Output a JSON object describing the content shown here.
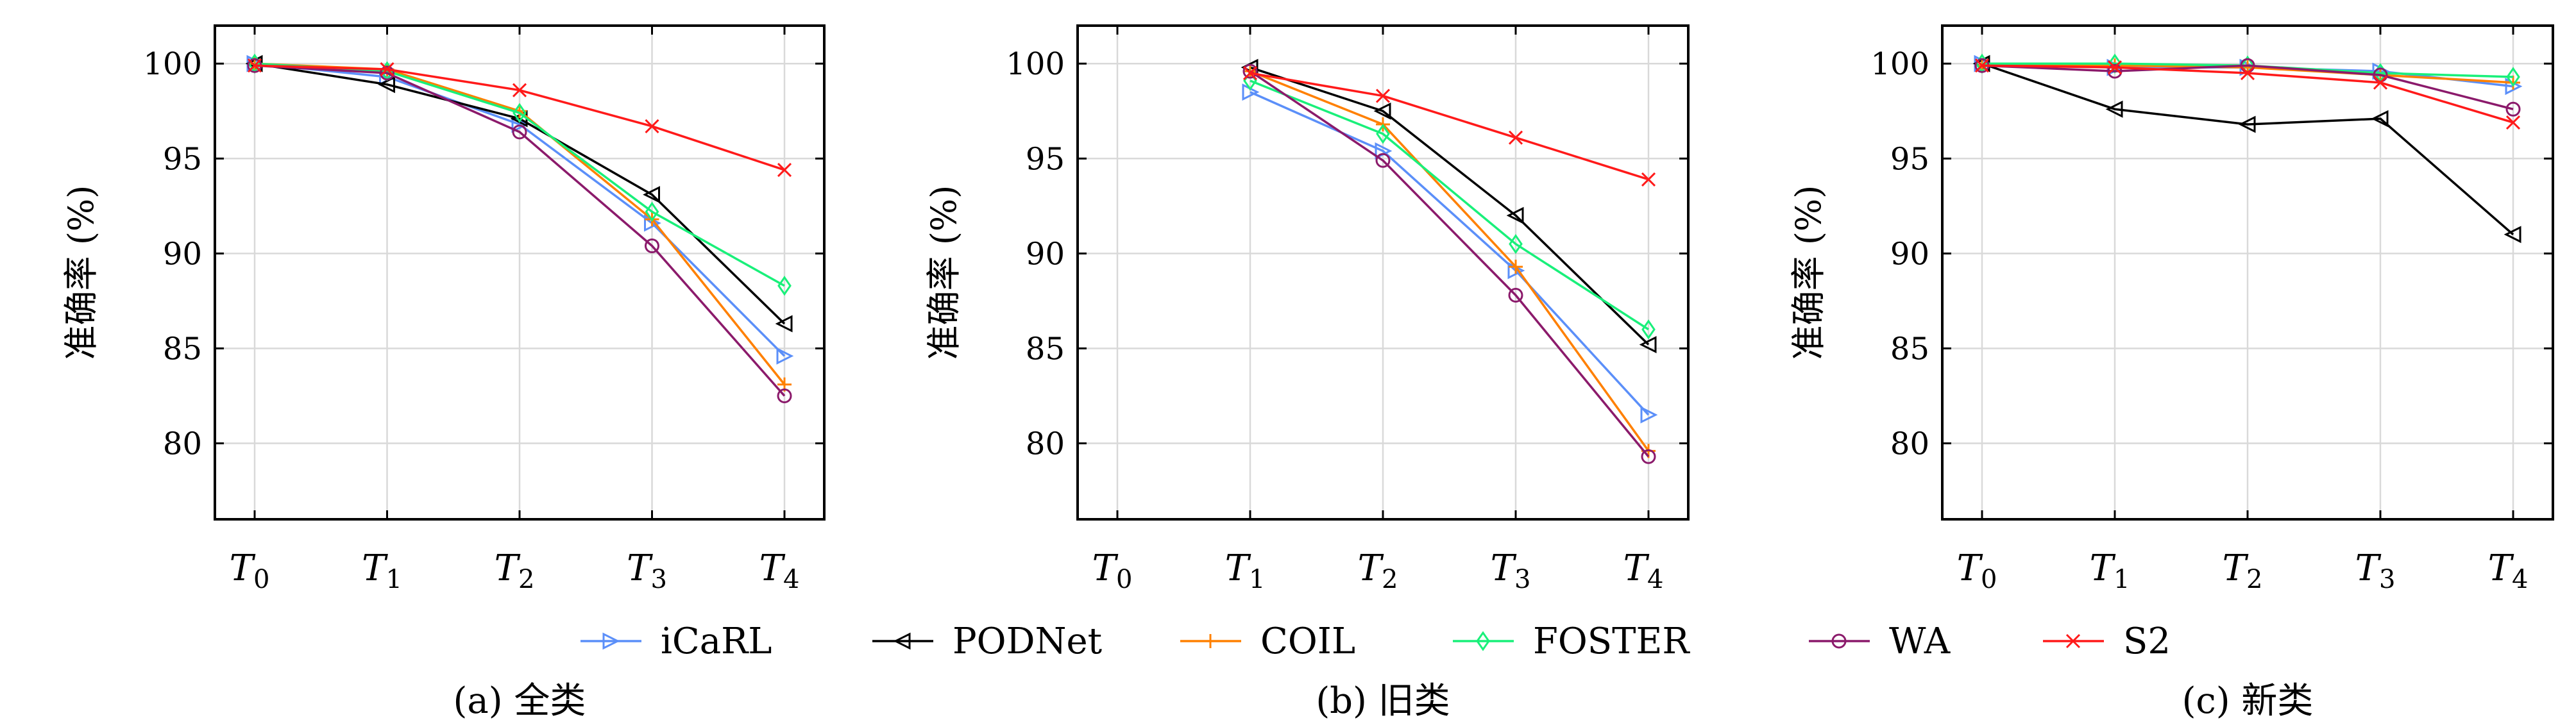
{
  "chart_data": [
    {
      "type": "line",
      "caption": "(a) 全类",
      "ylabel": "准确率 (%)",
      "x": [
        "T0",
        "T1",
        "T2",
        "T3",
        "T4"
      ],
      "ylim": [
        76,
        102
      ],
      "yticks": [
        80,
        85,
        90,
        95,
        100
      ],
      "grid": true,
      "series": [
        {
          "name": "iCaRL",
          "values": [
            100.0,
            99.3,
            96.8,
            91.6,
            84.6
          ]
        },
        {
          "name": "PODNet",
          "values": [
            100.0,
            98.9,
            97.1,
            93.1,
            86.3
          ]
        },
        {
          "name": "COIL",
          "values": [
            100.0,
            99.7,
            97.5,
            91.8,
            83.1
          ]
        },
        {
          "name": "FOSTER",
          "values": [
            100.0,
            99.6,
            97.4,
            92.2,
            88.3
          ]
        },
        {
          "name": "WA",
          "values": [
            99.9,
            99.5,
            96.4,
            90.4,
            82.5
          ]
        },
        {
          "name": "S2",
          "values": [
            99.9,
            99.7,
            98.6,
            96.7,
            94.4
          ]
        }
      ]
    },
    {
      "type": "line",
      "caption": "(b) 旧类",
      "ylabel": "准确率 (%)",
      "x": [
        "T0",
        "T1",
        "T2",
        "T3",
        "T4"
      ],
      "ylim": [
        76,
        102
      ],
      "yticks": [
        80,
        85,
        90,
        95,
        100
      ],
      "grid": true,
      "series": [
        {
          "name": "iCaRL",
          "values": [
            null,
            98.5,
            95.4,
            89.1,
            81.5
          ]
        },
        {
          "name": "PODNet",
          "values": [
            null,
            99.8,
            97.5,
            92.0,
            85.2
          ]
        },
        {
          "name": "COIL",
          "values": [
            null,
            99.6,
            96.8,
            89.3,
            79.6
          ]
        },
        {
          "name": "FOSTER",
          "values": [
            null,
            99.1,
            96.3,
            90.5,
            86.0
          ]
        },
        {
          "name": "WA",
          "values": [
            null,
            99.6,
            94.9,
            87.8,
            79.3
          ]
        },
        {
          "name": "S2",
          "values": [
            null,
            99.5,
            98.3,
            96.1,
            93.9
          ]
        }
      ]
    },
    {
      "type": "line",
      "caption": "(c) 新类",
      "ylabel": "准确率 (%)",
      "x": [
        "T0",
        "T1",
        "T2",
        "T3",
        "T4"
      ],
      "ylim": [
        76,
        102
      ],
      "yticks": [
        80,
        85,
        90,
        95,
        100
      ],
      "grid": true,
      "series": [
        {
          "name": "iCaRL",
          "values": [
            100.0,
            99.8,
            99.8,
            99.6,
            98.8
          ]
        },
        {
          "name": "PODNet",
          "values": [
            100.0,
            97.6,
            96.8,
            97.1,
            91.0
          ]
        },
        {
          "name": "COIL",
          "values": [
            99.9,
            99.9,
            99.8,
            99.4,
            99.0
          ]
        },
        {
          "name": "FOSTER",
          "values": [
            100.0,
            100.0,
            99.9,
            99.5,
            99.3
          ]
        },
        {
          "name": "WA",
          "values": [
            99.9,
            99.6,
            99.9,
            99.4,
            97.6
          ]
        },
        {
          "name": "S2",
          "values": [
            99.9,
            99.8,
            99.5,
            99.0,
            96.9
          ]
        }
      ]
    }
  ],
  "legend": {
    "placement": "bottom",
    "entries": [
      {
        "name": "iCaRL",
        "color": "#5b8ff9",
        "marker": "triangle-right"
      },
      {
        "name": "PODNet",
        "color": "#000000",
        "marker": "triangle-left"
      },
      {
        "name": "COIL",
        "color": "#ff8000",
        "marker": "plus"
      },
      {
        "name": "FOSTER",
        "color": "#19f07a",
        "marker": "diamond"
      },
      {
        "name": "WA",
        "color": "#8b1a6b",
        "marker": "circle"
      },
      {
        "name": "S2",
        "color": "#ff1a1a",
        "marker": "x"
      }
    ]
  }
}
